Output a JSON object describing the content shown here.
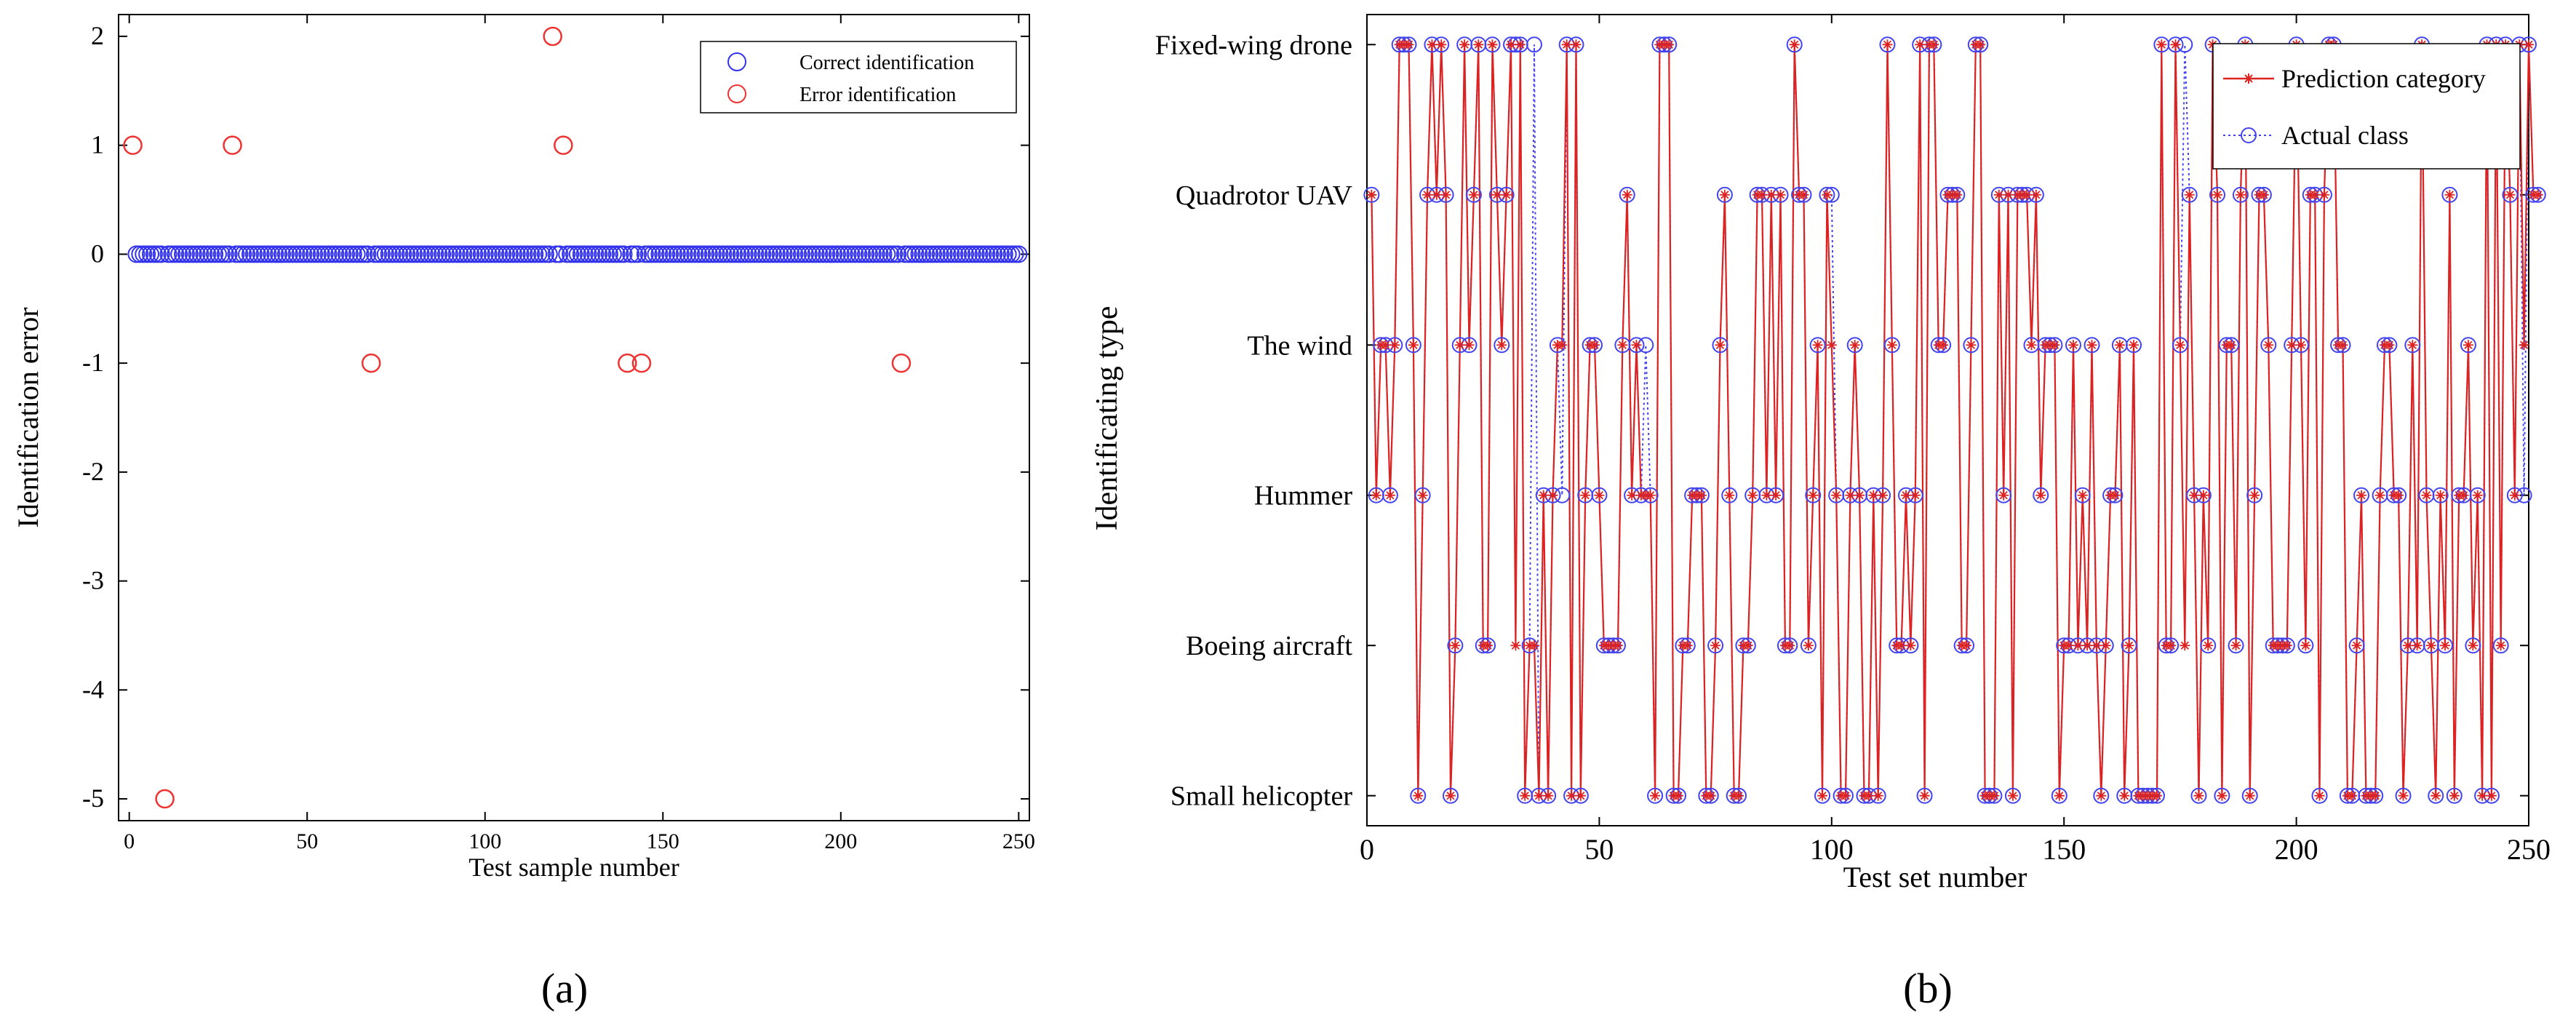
{
  "panel_labels": {
    "a": "(a)",
    "b": "(b)"
  },
  "chart_data": [
    {
      "id": "a",
      "type": "scatter",
      "title": "",
      "xlabel": "Test sample number",
      "ylabel": "Identification error",
      "xlim": [
        -3,
        253
      ],
      "ylim": [
        -5.2,
        2.2
      ],
      "xticks": [
        0,
        50,
        100,
        150,
        200,
        250
      ],
      "yticks": [
        2,
        1,
        0,
        -1,
        -2,
        -3,
        -4,
        -5
      ],
      "grid": false,
      "legend_position": "top-right",
      "series": [
        {
          "name": "Correct identification",
          "color": "#3333ee",
          "marker": "circle",
          "x_range": [
            1,
            250
          ],
          "value": 0,
          "excluded_x": [
            1,
            10,
            29,
            68,
            119,
            122,
            140,
            144,
            217
          ]
        },
        {
          "name": "Error identification",
          "color": "#ee3333",
          "marker": "circle",
          "points": [
            [
              1,
              1
            ],
            [
              10,
              -5
            ],
            [
              29,
              1
            ],
            [
              68,
              -1
            ],
            [
              119,
              2
            ],
            [
              122,
              1
            ],
            [
              140,
              -1
            ],
            [
              144,
              -1
            ],
            [
              217,
              -1
            ]
          ]
        }
      ]
    },
    {
      "id": "b",
      "type": "line",
      "title": "",
      "xlabel": "Test set  number",
      "ylabel": "Identificating    type",
      "xlim": [
        0,
        250
      ],
      "ylim": [
        0.8,
        6.2
      ],
      "xticks": [
        0,
        50,
        100,
        150,
        200,
        250
      ],
      "categories": [
        "Small helicopter",
        "Boeing aircraft",
        "Hummer",
        "The wind",
        "Quadrotor UAV",
        "Fixed-wing drone"
      ],
      "legend_position": "top-right",
      "actual_class": [
        5,
        3,
        4,
        4,
        3,
        4,
        6,
        6,
        6,
        4,
        1,
        3,
        5,
        6,
        5,
        6,
        5,
        1,
        2,
        4,
        6,
        4,
        5,
        6,
        2,
        2,
        6,
        5,
        4,
        5,
        6,
        6,
        6,
        1,
        2,
        6,
        1,
        3,
        1,
        3,
        4,
        3,
        6,
        1,
        6,
        1,
        3,
        4,
        4,
        3,
        2,
        2,
        2,
        2,
        4,
        5,
        3,
        4,
        3,
        4,
        3,
        1,
        6,
        6,
        6,
        1,
        1,
        2,
        2,
        3,
        3,
        3,
        1,
        1,
        2,
        4,
        5,
        3,
        1,
        1,
        2,
        2,
        3,
        5,
        5,
        3,
        5,
        3,
        5,
        2,
        2,
        6,
        5,
        5,
        2,
        3,
        4,
        1,
        5,
        5,
        3,
        1,
        1,
        3,
        4,
        3,
        1,
        1,
        3,
        1,
        3,
        6,
        4,
        2,
        2,
        3,
        2,
        3,
        6,
        1,
        6,
        6,
        4,
        4,
        5,
        5,
        5,
        2,
        2,
        4,
        6,
        6,
        1,
        1,
        1,
        5,
        3,
        5,
        1,
        5,
        5,
        5,
        4,
        5,
        3,
        4,
        4,
        4,
        1,
        2,
        2,
        4,
        2,
        3,
        2,
        4,
        2,
        1,
        2,
        3,
        3,
        4,
        1,
        2,
        4,
        1,
        1,
        1,
        1,
        1,
        6,
        2,
        2,
        6,
        4,
        6,
        5,
        3,
        1,
        3,
        2,
        6,
        5,
        1,
        4,
        4,
        2,
        5,
        6,
        1,
        3,
        5,
        5,
        4,
        2,
        2,
        2,
        2,
        4,
        6,
        4,
        2,
        5,
        5,
        1,
        5,
        6,
        6,
        4,
        4,
        1,
        1,
        2,
        3,
        1,
        1,
        1,
        3,
        4,
        4,
        3,
        3,
        1,
        2,
        4,
        2,
        6,
        3,
        2,
        1,
        3,
        2,
        5,
        1,
        3,
        3,
        4,
        2,
        3,
        1,
        6,
        1,
        6,
        2,
        6,
        5,
        3,
        6,
        3,
        6,
        5,
        5
      ],
      "mismatch_x": [
        32,
        36,
        42,
        60,
        100,
        176,
        249
      ],
      "series": [
        {
          "name": "Prediction category",
          "color": "#dd2222",
          "marker": "star",
          "linestyle": "solid"
        },
        {
          "name": "Actual class",
          "color": "#4444ee",
          "marker": "circle",
          "linestyle": "dotted"
        }
      ]
    }
  ]
}
